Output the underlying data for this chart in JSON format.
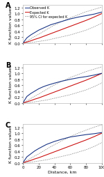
{
  "x": [
    0,
    5,
    10,
    15,
    20,
    25,
    30,
    35,
    40,
    50,
    60,
    70,
    80,
    90,
    100
  ],
  "panels": [
    {
      "label": "A",
      "observed": [
        0.0,
        0.18,
        0.28,
        0.36,
        0.44,
        0.5,
        0.56,
        0.62,
        0.66,
        0.74,
        0.82,
        0.88,
        0.93,
        0.98,
        1.05
      ],
      "expected": [
        0.0,
        0.04,
        0.08,
        0.13,
        0.17,
        0.22,
        0.27,
        0.32,
        0.37,
        0.47,
        0.57,
        0.67,
        0.77,
        0.88,
        1.0
      ],
      "ci_upper": [
        0.0,
        0.07,
        0.15,
        0.23,
        0.3,
        0.38,
        0.46,
        0.54,
        0.61,
        0.74,
        0.86,
        0.96,
        1.06,
        1.14,
        1.22
      ],
      "ci_lower": [
        0.0,
        0.01,
        0.02,
        0.04,
        0.06,
        0.08,
        0.1,
        0.13,
        0.16,
        0.22,
        0.28,
        0.36,
        0.44,
        0.55,
        0.68
      ]
    },
    {
      "label": "B",
      "observed": [
        0.0,
        0.22,
        0.32,
        0.4,
        0.48,
        0.54,
        0.59,
        0.63,
        0.67,
        0.74,
        0.8,
        0.85,
        0.89,
        0.94,
        1.0
      ],
      "expected": [
        0.0,
        0.04,
        0.08,
        0.13,
        0.17,
        0.22,
        0.27,
        0.32,
        0.37,
        0.47,
        0.57,
        0.67,
        0.77,
        0.88,
        1.0
      ],
      "ci_upper": [
        0.0,
        0.07,
        0.15,
        0.23,
        0.3,
        0.38,
        0.46,
        0.54,
        0.61,
        0.74,
        0.86,
        0.96,
        1.06,
        1.14,
        1.22
      ],
      "ci_lower": [
        0.0,
        0.01,
        0.02,
        0.04,
        0.06,
        0.08,
        0.1,
        0.13,
        0.16,
        0.22,
        0.28,
        0.36,
        0.44,
        0.55,
        0.68
      ]
    },
    {
      "label": "C",
      "observed": [
        0.0,
        0.2,
        0.3,
        0.4,
        0.48,
        0.55,
        0.62,
        0.67,
        0.72,
        0.8,
        0.87,
        0.91,
        0.95,
        0.98,
        1.02
      ],
      "expected": [
        0.0,
        0.04,
        0.08,
        0.13,
        0.17,
        0.22,
        0.27,
        0.32,
        0.37,
        0.47,
        0.57,
        0.67,
        0.77,
        0.88,
        1.0
      ],
      "ci_upper": [
        0.0,
        0.07,
        0.15,
        0.23,
        0.3,
        0.38,
        0.46,
        0.54,
        0.61,
        0.75,
        0.88,
        1.0,
        1.1,
        1.2,
        1.28
      ],
      "ci_lower": [
        0.0,
        0.01,
        0.02,
        0.04,
        0.06,
        0.08,
        0.1,
        0.13,
        0.16,
        0.22,
        0.28,
        0.36,
        0.44,
        0.55,
        0.68
      ]
    }
  ],
  "legend_labels": [
    "Observed K",
    "Expected K",
    "95% CI for expected K"
  ],
  "observed_color": "#1a3585",
  "expected_color": "#cc1111",
  "ci_color": "#888888",
  "xlabel": "Distance, km",
  "ylabel": "K function values",
  "xlim": [
    0,
    100
  ],
  "ylim": [
    0,
    1.3
  ],
  "xticks": [
    0,
    20,
    40,
    60,
    80,
    100
  ],
  "yticks": [
    0,
    0.2,
    0.4,
    0.6,
    0.8,
    1.0,
    1.2
  ],
  "background_color": "#ffffff",
  "label_fontsize": 4.5,
  "tick_fontsize": 4.0,
  "legend_fontsize": 3.5,
  "panel_label_fontsize": 7
}
